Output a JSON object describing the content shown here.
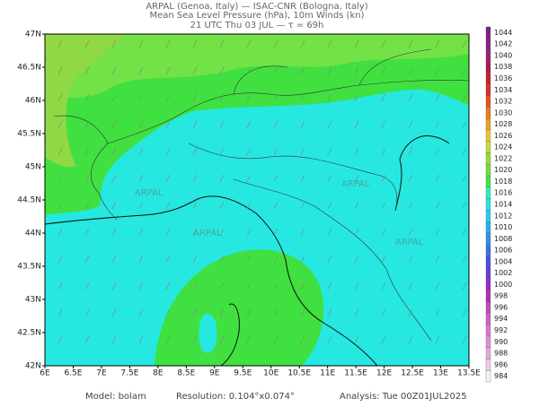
{
  "header": {
    "lines": [
      "ARPAL (Genoa, Italy)  —  ISAC-CNR (Bologna, Italy)",
      "Mean Sea Level Pressure (hPa), 10m Winds (kn)",
      "21 UTC Thu 03 JUL  —  τ = 69h"
    ]
  },
  "map": {
    "lon_labels": [
      "6E",
      "6.5E",
      "7E",
      "7.5E",
      "8E",
      "8.5E",
      "9E",
      "9.5E",
      "10E",
      "10.5E",
      "11E",
      "11.5E",
      "12E",
      "12.5E",
      "13E",
      "13.5E"
    ],
    "lat_labels": [
      "42N",
      "42.5N",
      "43N",
      "43.5N",
      "44N",
      "44.5N",
      "45N",
      "45.5N",
      "46N",
      "46.5N",
      "47N"
    ],
    "watermark": "ARPAL"
  },
  "colorbar": {
    "levels": [
      984,
      986,
      988,
      990,
      992,
      994,
      996,
      998,
      1000,
      1002,
      1004,
      1006,
      1008,
      1010,
      1012,
      1014,
      1016,
      1018,
      1020,
      1022,
      1024,
      1026,
      1028,
      1030,
      1032,
      1034,
      1036,
      1038,
      1040,
      1042,
      1044
    ],
    "colors": [
      "#f4f4f4",
      "#f0c8e8",
      "#e8a8dc",
      "#e090d4",
      "#d878cc",
      "#d060c4",
      "#c448bc",
      "#b030b0",
      "#9a28c8",
      "#6a3cd8",
      "#4a50e0",
      "#3a70e8",
      "#3090f0",
      "#28b0f0",
      "#20d0ec",
      "#24e8e4",
      "#30ecc0",
      "#3ee83e",
      "#6ee040",
      "#9ad840",
      "#c8d83c",
      "#e8c830",
      "#f0a028",
      "#f07820",
      "#e85020",
      "#d83020",
      "#c82030",
      "#b01850",
      "#982070",
      "#8a2080",
      "#7a1e8a"
    ]
  },
  "footer": {
    "model": "Model: bolam",
    "resolution": "Resolution: 0.104°x0.074°",
    "analysis": "Analysis: Tue 00Z01JUL2025"
  }
}
